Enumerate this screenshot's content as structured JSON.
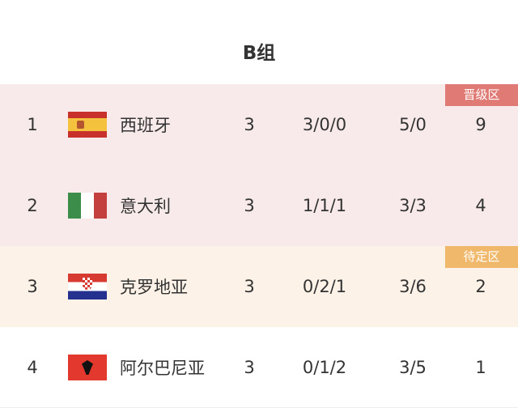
{
  "title": "B组",
  "colors": {
    "qualified_bg": "#f8eaea",
    "pending_bg": "#fcf2e7",
    "qualified_badge": "#e07a74",
    "pending_badge": "#f0b86a"
  },
  "rows": [
    {
      "rank": "1",
      "flag": "spain-flag",
      "team": "西班牙",
      "played": "3",
      "wdl": "3/0/0",
      "goals": "5/0",
      "points": "9",
      "badge": "晋级区",
      "zone": "qualified"
    },
    {
      "rank": "2",
      "flag": "italy-flag",
      "team": "意大利",
      "played": "3",
      "wdl": "1/1/1",
      "goals": "3/3",
      "points": "4",
      "zone": "qualified"
    },
    {
      "rank": "3",
      "flag": "croatia-flag",
      "team": "克罗地亚",
      "played": "3",
      "wdl": "0/2/1",
      "goals": "3/6",
      "points": "2",
      "badge": "待定区",
      "zone": "pending"
    },
    {
      "rank": "4",
      "flag": "albania-flag",
      "team": "阿尔巴尼亚",
      "played": "3",
      "wdl": "0/1/2",
      "goals": "3/5",
      "points": "1",
      "zone": "none"
    }
  ]
}
